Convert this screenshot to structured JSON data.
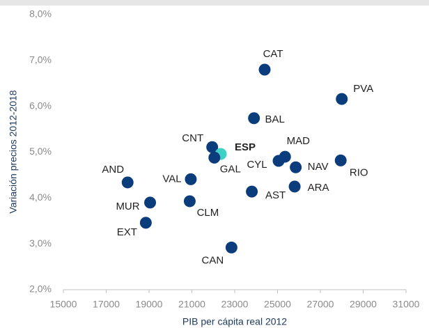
{
  "chart_data": {
    "type": "scatter",
    "labels": [
      "CAT",
      "PVA",
      "BAL",
      "CNT",
      "ESP",
      "GAL",
      "MAD",
      "CYL",
      "NAV",
      "RIO",
      "AND",
      "VAL",
      "MUR",
      "CLM",
      "AST",
      "ARA",
      "EXT",
      "CAN"
    ],
    "x": [
      24400,
      28000,
      23900,
      21950,
      22350,
      22050,
      25350,
      25050,
      25850,
      27950,
      18000,
      20950,
      19050,
      20900,
      23800,
      25800,
      18850,
      22850
    ],
    "y": [
      6.8,
      6.16,
      5.74,
      5.11,
      4.96,
      4.88,
      4.9,
      4.81,
      4.67,
      4.82,
      4.34,
      4.41,
      3.9,
      3.93,
      4.14,
      4.25,
      3.46,
      2.92
    ],
    "point_colors": [
      "#0b3d7c",
      "#0b3d7c",
      "#0b3d7c",
      "#0b3d7c",
      "#3fd0c8",
      "#0b3d7c",
      "#0b3d7c",
      "#0b3d7c",
      "#0b3d7c",
      "#0b3d7c",
      "#0b3d7c",
      "#0b3d7c",
      "#0b3d7c",
      "#0b3d7c",
      "#0b3d7c",
      "#0b3d7c",
      "#0b3d7c",
      "#0b3d7c"
    ],
    "bold_labels": [
      "ESP"
    ],
    "x_label": "PIB per cápita real 2012",
    "y_label": "Variación precios 2012-2018",
    "xlim": [
      15000,
      31000
    ],
    "xticks": [
      15000,
      17000,
      19000,
      21000,
      23000,
      25000,
      27000,
      29000,
      31000
    ],
    "ylim": [
      2,
      8
    ],
    "yticks": [
      {
        "value": 2,
        "label": "2,0%"
      },
      {
        "value": 3,
        "label": "3,0%"
      },
      {
        "value": 4,
        "label": "4,0%"
      },
      {
        "value": 5,
        "label": "5,0%"
      },
      {
        "value": 6,
        "label": "6,0%"
      },
      {
        "value": 7,
        "label": "7,0%"
      },
      {
        "value": 8,
        "label": "8,0%"
      }
    ],
    "grid": false
  }
}
